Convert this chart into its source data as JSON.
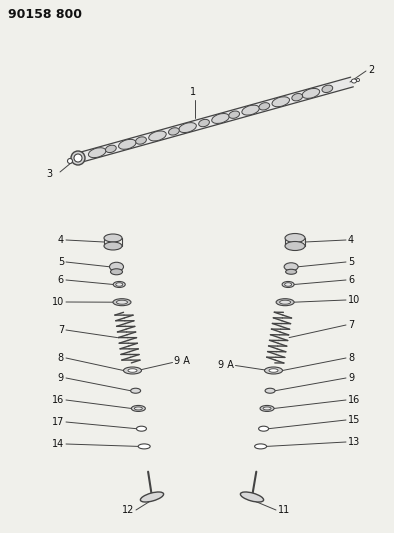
{
  "title": "90158 800",
  "bg_color": "#f0f0eb",
  "line_color": "#444444",
  "text_color": "#111111",
  "title_fontsize": 9,
  "label_fontsize": 7
}
